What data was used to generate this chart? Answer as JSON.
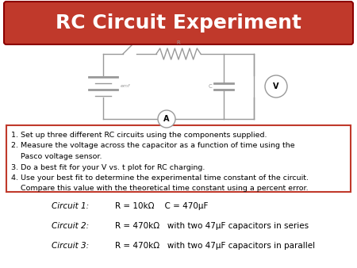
{
  "title": "RC Circuit Experiment",
  "title_bg_color": "#c0392b",
  "title_text_color": "#ffffff",
  "title_fontsize": 18,
  "background_color": "#ffffff",
  "instructions": [
    "1. Set up three different RC circuits using the components supplied.",
    "2. Measure the voltage across the capacitor as a function of time using the",
    "    Pasco voltage sensor.",
    "3. Do a best fit for your V vs. t plot for RC charging.",
    "4. Use your best fit to determine the experimental time constant of the circuit.",
    "    Compare this value with the theoretical time constant using a percent error."
  ],
  "circuits": [
    {
      "label": "Circuit 1:",
      "desc": "R = 10kΩ    C = 470μF"
    },
    {
      "label": "Circuit 2:",
      "desc": "R = 470kΩ   with two 47μF capacitors in series"
    },
    {
      "label": "Circuit 3:",
      "desc": "R = 470kΩ   with two 47μF capacitors in parallel"
    }
  ],
  "box_edge_color": "#c0392b",
  "instr_fontsize": 6.8,
  "circuit_fontsize": 7.5
}
